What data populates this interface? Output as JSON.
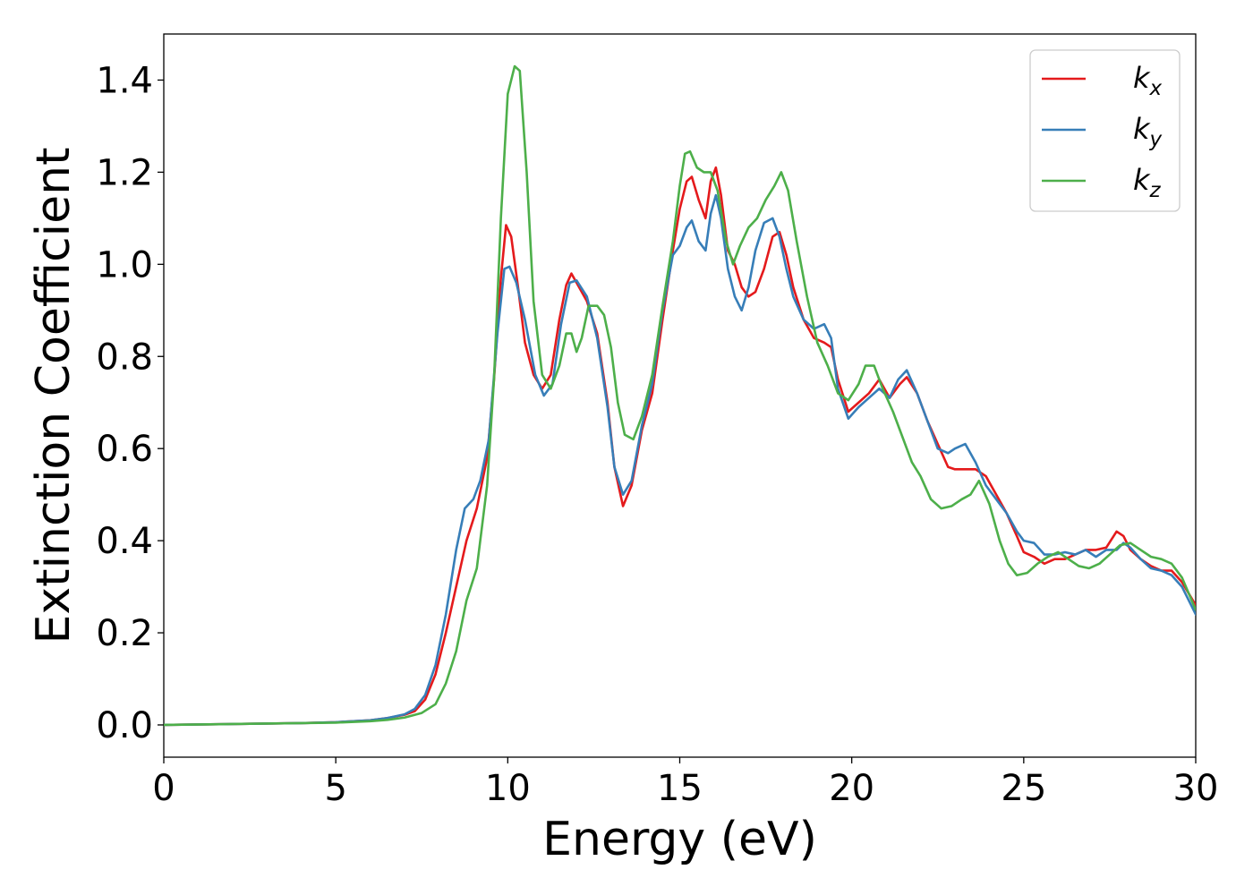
{
  "chart_data": {
    "type": "line",
    "title": "",
    "xlabel": "Energy (eV)",
    "ylabel": "Extinction Coefficient",
    "xlim": [
      0,
      30
    ],
    "ylim": [
      -0.07,
      1.5
    ],
    "xticks": [
      0,
      5,
      10,
      15,
      20,
      25,
      30
    ],
    "xtick_labels": [
      "0",
      "5",
      "10",
      "15",
      "20",
      "25",
      "30"
    ],
    "yticks": [
      0.0,
      0.2,
      0.4,
      0.6,
      0.8,
      1.0,
      1.2,
      1.4
    ],
    "ytick_labels": [
      "0.0",
      "0.2",
      "0.4",
      "0.6",
      "0.8",
      "1.0",
      "1.2",
      "1.4"
    ],
    "grid": false,
    "legend": {
      "position": "top-right",
      "entries": [
        {
          "base": "k",
          "sub": "x"
        },
        {
          "base": "k",
          "sub": "y"
        },
        {
          "base": "k",
          "sub": "z"
        }
      ]
    },
    "colors": [
      "#e41a1c",
      "#377eb8",
      "#4daf4a"
    ],
    "series": [
      {
        "color": "#e41a1c",
        "x": [
          0,
          2,
          4,
          5,
          6,
          6.5,
          7,
          7.3,
          7.6,
          7.9,
          8.2,
          8.5,
          8.8,
          9.1,
          9.4,
          9.6,
          9.8,
          9.95,
          10.1,
          10.3,
          10.5,
          10.75,
          11,
          11.25,
          11.5,
          11.7,
          11.85,
          12,
          12.3,
          12.6,
          12.9,
          13.1,
          13.35,
          13.6,
          13.9,
          14.2,
          14.5,
          14.8,
          15,
          15.2,
          15.35,
          15.55,
          15.75,
          15.9,
          16.05,
          16.2,
          16.4,
          16.6,
          16.8,
          17,
          17.2,
          17.45,
          17.7,
          17.9,
          18.1,
          18.3,
          18.6,
          18.9,
          19.2,
          19.4,
          19.6,
          19.9,
          20.2,
          20.5,
          20.8,
          21.1,
          21.4,
          21.6,
          21.9,
          22.2,
          22.5,
          22.8,
          23,
          23.3,
          23.6,
          23.9,
          24.2,
          24.5,
          24.8,
          25,
          25.3,
          25.6,
          25.9,
          26.2,
          26.5,
          26.8,
          27.1,
          27.4,
          27.7,
          27.9,
          28.1,
          28.4,
          28.7,
          29,
          29.3,
          29.6,
          30
        ],
        "y": [
          0.0,
          0.002,
          0.004,
          0.006,
          0.01,
          0.015,
          0.022,
          0.03,
          0.055,
          0.11,
          0.2,
          0.3,
          0.4,
          0.47,
          0.58,
          0.75,
          0.97,
          1.085,
          1.06,
          0.95,
          0.83,
          0.76,
          0.73,
          0.76,
          0.88,
          0.955,
          0.98,
          0.96,
          0.92,
          0.85,
          0.7,
          0.56,
          0.475,
          0.52,
          0.64,
          0.72,
          0.88,
          1.03,
          1.12,
          1.18,
          1.19,
          1.14,
          1.1,
          1.18,
          1.21,
          1.15,
          1.03,
          1.0,
          0.95,
          0.93,
          0.94,
          0.99,
          1.06,
          1.07,
          1.02,
          0.95,
          0.88,
          0.84,
          0.83,
          0.82,
          0.75,
          0.68,
          0.7,
          0.72,
          0.75,
          0.71,
          0.74,
          0.755,
          0.72,
          0.66,
          0.61,
          0.56,
          0.555,
          0.555,
          0.555,
          0.54,
          0.5,
          0.46,
          0.41,
          0.375,
          0.365,
          0.35,
          0.36,
          0.36,
          0.37,
          0.38,
          0.38,
          0.385,
          0.42,
          0.41,
          0.38,
          0.36,
          0.345,
          0.335,
          0.335,
          0.31,
          0.26
        ]
      },
      {
        "color": "#377eb8",
        "x": [
          0,
          2,
          4,
          5,
          6,
          6.5,
          7,
          7.3,
          7.6,
          7.9,
          8.2,
          8.5,
          8.75,
          9,
          9.2,
          9.45,
          9.7,
          9.9,
          10.05,
          10.25,
          10.5,
          10.8,
          11.05,
          11.3,
          11.55,
          11.8,
          12,
          12.3,
          12.6,
          12.9,
          13.1,
          13.35,
          13.6,
          13.9,
          14.2,
          14.5,
          14.8,
          15,
          15.2,
          15.35,
          15.55,
          15.75,
          15.9,
          16.05,
          16.2,
          16.4,
          16.6,
          16.8,
          17,
          17.2,
          17.45,
          17.7,
          17.9,
          18.1,
          18.3,
          18.6,
          18.9,
          19.2,
          19.4,
          19.6,
          19.9,
          20.2,
          20.5,
          20.8,
          21.1,
          21.35,
          21.6,
          21.9,
          22.2,
          22.5,
          22.8,
          23,
          23.3,
          23.6,
          23.9,
          24.2,
          24.5,
          24.8,
          25,
          25.3,
          25.6,
          25.9,
          26.2,
          26.5,
          26.8,
          27.1,
          27.4,
          27.7,
          27.9,
          28.1,
          28.4,
          28.7,
          29,
          29.3,
          29.6,
          30
        ],
        "y": [
          0.0,
          0.002,
          0.004,
          0.006,
          0.01,
          0.015,
          0.023,
          0.035,
          0.065,
          0.13,
          0.24,
          0.38,
          0.47,
          0.49,
          0.53,
          0.62,
          0.85,
          0.99,
          0.995,
          0.96,
          0.88,
          0.76,
          0.715,
          0.74,
          0.87,
          0.96,
          0.965,
          0.93,
          0.84,
          0.69,
          0.56,
          0.5,
          0.53,
          0.65,
          0.74,
          0.9,
          1.02,
          1.04,
          1.08,
          1.095,
          1.05,
          1.03,
          1.11,
          1.15,
          1.1,
          0.99,
          0.93,
          0.9,
          0.95,
          1.03,
          1.09,
          1.1,
          1.06,
          0.99,
          0.93,
          0.88,
          0.86,
          0.87,
          0.84,
          0.73,
          0.665,
          0.69,
          0.71,
          0.73,
          0.71,
          0.75,
          0.77,
          0.72,
          0.66,
          0.6,
          0.59,
          0.6,
          0.61,
          0.57,
          0.52,
          0.49,
          0.46,
          0.42,
          0.4,
          0.395,
          0.37,
          0.37,
          0.375,
          0.37,
          0.38,
          0.365,
          0.38,
          0.38,
          0.395,
          0.385,
          0.36,
          0.34,
          0.335,
          0.325,
          0.3,
          0.24
        ]
      },
      {
        "color": "#4daf4a",
        "x": [
          0,
          2,
          4,
          5,
          6,
          6.5,
          7,
          7.5,
          7.9,
          8.2,
          8.5,
          8.8,
          9.1,
          9.4,
          9.6,
          9.8,
          10,
          10.2,
          10.35,
          10.55,
          10.75,
          11,
          11.25,
          11.5,
          11.7,
          11.85,
          12,
          12.15,
          12.35,
          12.6,
          12.8,
          13,
          13.2,
          13.4,
          13.65,
          13.9,
          14.2,
          14.5,
          14.8,
          15,
          15.15,
          15.3,
          15.5,
          15.7,
          15.9,
          16.1,
          16.35,
          16.55,
          16.75,
          17,
          17.25,
          17.5,
          17.75,
          17.95,
          18.15,
          18.4,
          18.7,
          19,
          19.3,
          19.6,
          19.9,
          20.2,
          20.4,
          20.65,
          20.9,
          21.2,
          21.5,
          21.75,
          22,
          22.3,
          22.6,
          22.9,
          23.2,
          23.45,
          23.7,
          24,
          24.3,
          24.55,
          24.8,
          25.1,
          25.4,
          25.7,
          26,
          26.3,
          26.6,
          26.9,
          27.2,
          27.5,
          27.8,
          28.1,
          28.4,
          28.7,
          29,
          29.3,
          29.6,
          30
        ],
        "y": [
          0.0,
          0.002,
          0.004,
          0.005,
          0.008,
          0.011,
          0.016,
          0.026,
          0.045,
          0.09,
          0.16,
          0.27,
          0.34,
          0.52,
          0.75,
          1.1,
          1.37,
          1.43,
          1.42,
          1.2,
          0.92,
          0.76,
          0.73,
          0.78,
          0.85,
          0.85,
          0.81,
          0.84,
          0.91,
          0.91,
          0.89,
          0.82,
          0.7,
          0.63,
          0.62,
          0.67,
          0.76,
          0.91,
          1.05,
          1.17,
          1.24,
          1.245,
          1.21,
          1.2,
          1.2,
          1.16,
          1.05,
          1.0,
          1.04,
          1.08,
          1.1,
          1.14,
          1.17,
          1.2,
          1.16,
          1.05,
          0.93,
          0.83,
          0.78,
          0.72,
          0.705,
          0.74,
          0.78,
          0.78,
          0.73,
          0.68,
          0.62,
          0.57,
          0.54,
          0.49,
          0.47,
          0.475,
          0.49,
          0.5,
          0.53,
          0.48,
          0.4,
          0.35,
          0.325,
          0.33,
          0.35,
          0.365,
          0.375,
          0.36,
          0.345,
          0.34,
          0.35,
          0.37,
          0.39,
          0.395,
          0.38,
          0.365,
          0.36,
          0.35,
          0.32,
          0.25
        ]
      }
    ]
  }
}
